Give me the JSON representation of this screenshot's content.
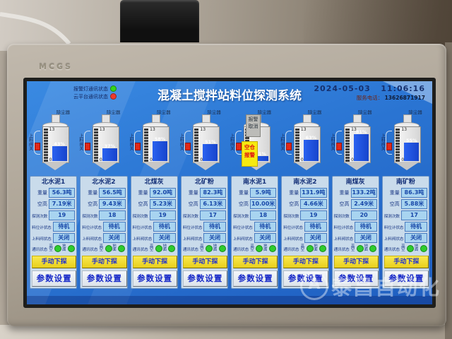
{
  "device": {
    "brand": "MCGS"
  },
  "header": {
    "title": "混凝土搅拌站料位探测系统",
    "date": "2024-05-03",
    "time": "11:06:16",
    "service_label": "服务电话：",
    "service_phone": "13626871917",
    "indicators": [
      {
        "label": "报警灯通讯状态",
        "color": "#35d41a"
      },
      {
        "label": "云平台通讯状态",
        "color": "#ef392c"
      }
    ]
  },
  "alarms": {
    "cancel_button": "报警取消",
    "empty_silo": "空仓报警"
  },
  "column_labels": {
    "weight": "重量",
    "empty_height": "空高",
    "probe_count": "探测次数",
    "gauge_status": "料位计状态",
    "valve_status": "上料阀状态",
    "comm_status": "通讯状态",
    "comm_high": "高空",
    "comm_ground": "地面"
  },
  "buttons": {
    "manual_probe": "手动下探",
    "param_set": "参数设置"
  },
  "colors": {
    "comm_ok": "#2ecc2e",
    "fill_blue": "#1f55e8",
    "alarm_yellow": "#f6ea10",
    "alarm_red": "#e01212"
  },
  "silos": [
    {
      "name": "北水泥1",
      "duster_label": "除尘器",
      "scale_top": "13",
      "scale_bottom": "0",
      "fill_percent": 43,
      "percent_label": "43%",
      "weight": "56.3吨",
      "empty_height": "7.19米",
      "probe_count": "19",
      "gauge_status": "待机",
      "valve_status": "关闭",
      "valve_label": "上料阀关",
      "comm_high_ok": true,
      "comm_ground_ok": true
    },
    {
      "name": "北水泥2",
      "duster_label": "除尘器",
      "scale_top": "13",
      "scale_bottom": "0",
      "fill_percent": 37,
      "percent_label": "37%",
      "weight": "56.5吨",
      "empty_height": "9.43米",
      "probe_count": "18",
      "gauge_status": "待机",
      "valve_status": "关闭",
      "valve_label": "上料阀关",
      "comm_high_ok": true,
      "comm_ground_ok": true
    },
    {
      "name": "北煤灰",
      "duster_label": "除尘器",
      "scale_top": "13",
      "scale_bottom": "0",
      "fill_percent": 58,
      "percent_label": "58%",
      "weight": "92.0吨",
      "empty_height": "5.23米",
      "probe_count": "19",
      "gauge_status": "待机",
      "valve_status": "关闭",
      "valve_label": "上料阀关",
      "comm_high_ok": true,
      "comm_ground_ok": true
    },
    {
      "name": "北矿粉",
      "duster_label": "除尘器",
      "scale_top": "13",
      "scale_bottom": "0",
      "fill_percent": 51,
      "percent_label": "51%",
      "weight": "82.3吨",
      "empty_height": "6.13米",
      "probe_count": "17",
      "gauge_status": "待机",
      "valve_status": "关闭",
      "valve_label": "上料阀关",
      "comm_high_ok": true,
      "comm_ground_ok": true
    },
    {
      "name": "南水泥1",
      "duster_label": "除尘器",
      "scale_top": "12",
      "scale_bottom": "0",
      "fill_percent": 11,
      "percent_label": "11%",
      "weight": "5.9吨",
      "empty_height": "10.00米",
      "probe_count": "18",
      "gauge_status": "待机",
      "valve_status": "关闭",
      "valve_label": "上料阀关",
      "comm_high_ok": true,
      "comm_ground_ok": true
    },
    {
      "name": "南水泥2",
      "duster_label": "除尘器",
      "scale_top": "13",
      "scale_bottom": "0",
      "fill_percent": 63,
      "percent_label": "63%",
      "weight": "131.9吨",
      "empty_height": "4.66米",
      "probe_count": "19",
      "gauge_status": "待机",
      "valve_status": "关闭",
      "valve_label": "上料阀关",
      "comm_high_ok": true,
      "comm_ground_ok": true
    },
    {
      "name": "南煤灰",
      "duster_label": "除尘器",
      "scale_top": "13",
      "scale_bottom": "0",
      "fill_percent": 81,
      "percent_label": "81%",
      "weight": "133.2吨",
      "empty_height": "2.49米",
      "probe_count": "20",
      "gauge_status": "待机",
      "valve_status": "关闭",
      "valve_label": "上料阀关",
      "comm_high_ok": true,
      "comm_ground_ok": true
    },
    {
      "name": "南矿粉",
      "duster_label": "除尘器",
      "scale_top": "13",
      "scale_bottom": "0",
      "fill_percent": 55,
      "percent_label": "55%",
      "weight": "86.3吨",
      "empty_height": "5.88米",
      "probe_count": "17",
      "gauge_status": "待机",
      "valve_status": "关闭",
      "valve_label": "上料阀关",
      "comm_high_ok": true,
      "comm_ground_ok": true
    }
  ],
  "watermark": "泰昌自动化",
  "watermark_logo": "A"
}
